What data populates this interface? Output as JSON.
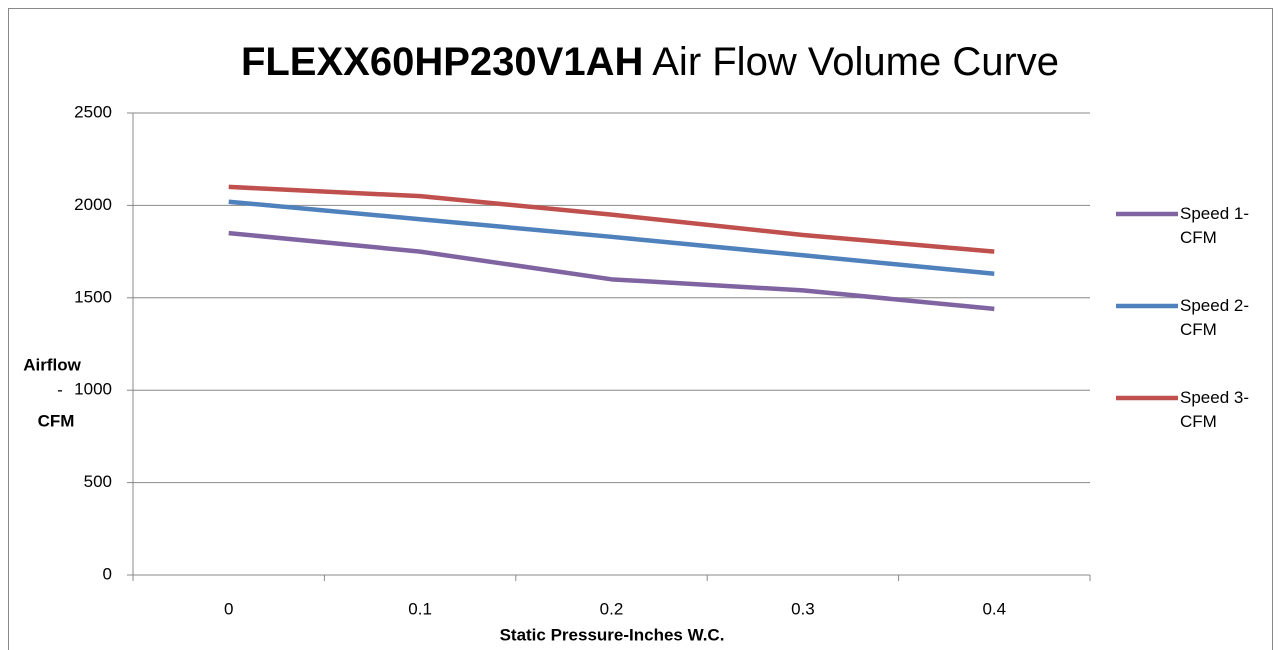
{
  "chart_data": {
    "type": "line",
    "title": [
      "FLEXX60HP230V1AH",
      "Air Flow Volume Curve"
    ],
    "x_label": "Static Pressure-Inches W.C.",
    "y_label": [
      "Airflow",
      "-",
      "CFM"
    ],
    "categories": [
      "0",
      "0.1",
      "0.2",
      "0.3",
      "0.4"
    ],
    "series": [
      {
        "name": "Speed 1-CFM",
        "color": "#8064a2",
        "values": [
          1850,
          1750,
          1600,
          1540,
          1440
        ]
      },
      {
        "name": "Speed 2-CFM",
        "color": "#4f81bd",
        "values": [
          2020,
          1925,
          1830,
          1730,
          1630
        ]
      },
      {
        "name": "Speed 3-CFM",
        "color": "#c0504d",
        "values": [
          2100,
          2050,
          1950,
          1840,
          1750
        ]
      }
    ],
    "ylim": [
      0,
      2500
    ],
    "yticks": [
      0,
      500,
      1000,
      1500,
      2000,
      2500
    ],
    "grid": true,
    "legend": "right"
  }
}
